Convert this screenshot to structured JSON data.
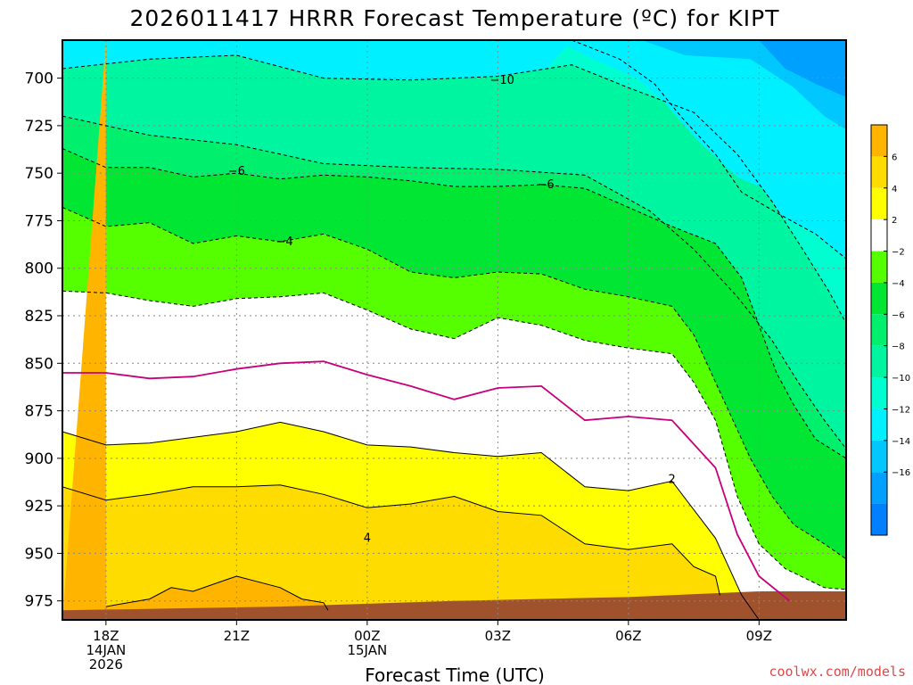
{
  "chart_data": {
    "type": "heatmap",
    "title": "2026011417 HRRR Forecast Temperature (ºC) for KIPT",
    "xlabel": "Forecast Time (UTC)",
    "ylabel": "",
    "x_range_hours": [
      -1,
      17
    ],
    "y_range_hpa": [
      680,
      985
    ],
    "x_ticks": [
      {
        "hour": 0,
        "lines": [
          "18Z",
          "14JAN",
          "2026"
        ]
      },
      {
        "hour": 3,
        "lines": [
          "21Z"
        ]
      },
      {
        "hour": 6,
        "lines": [
          "00Z",
          "15JAN"
        ]
      },
      {
        "hour": 9,
        "lines": [
          "03Z"
        ]
      },
      {
        "hour": 12,
        "lines": [
          "06Z"
        ]
      },
      {
        "hour": 15,
        "lines": [
          "09Z"
        ]
      }
    ],
    "y_ticks": [
      700,
      725,
      750,
      775,
      800,
      825,
      850,
      875,
      900,
      925,
      950,
      975
    ],
    "colorbar": {
      "bands": [
        {
          "from": 6,
          "to": 8,
          "color": "#ffb400"
        },
        {
          "from": 4,
          "to": 6,
          "color": "#ffdc00"
        },
        {
          "from": 2,
          "to": 4,
          "color": "#ffff00"
        },
        {
          "from": -2,
          "to": 2,
          "color": "#ffffff"
        },
        {
          "from": -4,
          "to": -2,
          "color": "#55ff00"
        },
        {
          "from": -6,
          "to": -4,
          "color": "#00e632"
        },
        {
          "from": -8,
          "to": -6,
          "color": "#00f06e"
        },
        {
          "from": -10,
          "to": -8,
          "color": "#00f5a0"
        },
        {
          "from": -12,
          "to": -10,
          "color": "#00ffd0"
        },
        {
          "from": -14,
          "to": -12,
          "color": "#00f0ff"
        },
        {
          "from": -16,
          "to": -14,
          "color": "#00c8ff"
        },
        {
          "from": -18,
          "to": -16,
          "color": "#00a0ff"
        },
        {
          "from": -20,
          "to": -18,
          "color": "#0080ff"
        }
      ],
      "tick_labels": [
        "6",
        "4",
        "2",
        "−2",
        "−4",
        "−6",
        "−8",
        "−10",
        "−12",
        "−14",
        "−16"
      ]
    },
    "fill_regions": [
      {
        "level": -18,
        "color": "#0080ff",
        "upper": [],
        "lower": []
      },
      {
        "level": -16,
        "color": "#00a0ff"
      },
      {
        "level": -14,
        "color": "#00c8ff"
      },
      {
        "level": -12,
        "color": "#00f0ff"
      },
      {
        "level": -10,
        "color": "#00ffd0"
      },
      {
        "level": -8,
        "color": "#00f5a0"
      },
      {
        "level": -6,
        "color": "#00f06e"
      },
      {
        "level": -4,
        "color": "#00e632"
      },
      {
        "level": -2,
        "color": "#55ff00"
      },
      {
        "level": 2,
        "color": "#ffffff"
      },
      {
        "level": 4,
        "color": "#ffff00"
      },
      {
        "level": 6,
        "color": "#ffdc00"
      },
      {
        "level": 8,
        "color": "#ffb400"
      }
    ],
    "isotherms": [
      {
        "value": -12,
        "style": "dashed",
        "points": [
          [
            10.7,
            680
          ],
          [
            11.8,
            690
          ],
          [
            12.6,
            703
          ],
          [
            13.2,
            720
          ],
          [
            14.0,
            740
          ],
          [
            14.6,
            760
          ],
          [
            15.5,
            772
          ],
          [
            16.3,
            782
          ],
          [
            17,
            795
          ]
        ]
      },
      {
        "value": -10,
        "style": "dashed",
        "points": [
          [
            -1,
            695
          ],
          [
            1,
            690
          ],
          [
            3,
            688
          ],
          [
            5,
            700
          ],
          [
            7,
            701
          ],
          [
            9,
            699
          ],
          [
            10.7,
            693
          ],
          [
            12,
            705
          ],
          [
            13.5,
            718
          ],
          [
            14.5,
            740
          ],
          [
            15.3,
            765
          ],
          [
            16,
            790
          ],
          [
            16.6,
            812
          ],
          [
            17,
            829
          ]
        ]
      },
      {
        "value": -8,
        "style": "dashed",
        "points": [
          [
            -1,
            720
          ],
          [
            1,
            730
          ],
          [
            3,
            735
          ],
          [
            5,
            745
          ],
          [
            7,
            747
          ],
          [
            9,
            748
          ],
          [
            11,
            751
          ],
          [
            12.5,
            770
          ],
          [
            13.5,
            790
          ],
          [
            14.5,
            815
          ],
          [
            15.3,
            838
          ],
          [
            15.9,
            860
          ],
          [
            16.5,
            880
          ],
          [
            17,
            895
          ]
        ]
      },
      {
        "value": -6,
        "style": "dashed",
        "points": [
          [
            -1,
            737
          ],
          [
            0,
            747
          ],
          [
            1,
            747
          ],
          [
            2,
            752
          ],
          [
            3,
            750
          ],
          [
            4,
            753
          ],
          [
            5,
            751
          ],
          [
            6,
            752
          ],
          [
            7,
            754
          ],
          [
            8,
            757
          ],
          [
            9,
            757
          ],
          [
            10,
            756
          ],
          [
            11,
            758
          ],
          [
            12,
            768
          ],
          [
            13,
            778
          ],
          [
            14,
            787
          ],
          [
            14.6,
            805
          ],
          [
            15,
            830
          ],
          [
            15.4,
            855
          ],
          [
            15.8,
            872
          ],
          [
            16.3,
            890
          ],
          [
            17,
            900
          ]
        ]
      },
      {
        "value": -4,
        "style": "dashed",
        "points": [
          [
            -1,
            768
          ],
          [
            0,
            778
          ],
          [
            1,
            776
          ],
          [
            2,
            787
          ],
          [
            3,
            783
          ],
          [
            4,
            786
          ],
          [
            5,
            782
          ],
          [
            6,
            790
          ],
          [
            7,
            802
          ],
          [
            8,
            805
          ],
          [
            9,
            802
          ],
          [
            10,
            803
          ],
          [
            11,
            811
          ],
          [
            12,
            815
          ],
          [
            13,
            820
          ],
          [
            13.5,
            835
          ],
          [
            14.2,
            870
          ],
          [
            14.8,
            900
          ],
          [
            15.3,
            920
          ],
          [
            15.8,
            935
          ],
          [
            16.5,
            945
          ],
          [
            17,
            953
          ]
        ]
      },
      {
        "value": -2,
        "style": "dashed",
        "points": [
          [
            -1,
            812
          ],
          [
            0,
            813
          ],
          [
            1,
            817
          ],
          [
            2,
            820
          ],
          [
            3,
            816
          ],
          [
            4,
            815
          ],
          [
            5,
            813
          ],
          [
            6,
            822
          ],
          [
            7,
            832
          ],
          [
            8,
            837
          ],
          [
            9,
            826
          ],
          [
            10,
            830
          ],
          [
            11,
            838
          ],
          [
            12,
            842
          ],
          [
            13,
            845
          ],
          [
            13.5,
            860
          ],
          [
            14.0,
            880
          ],
          [
            14.5,
            920
          ],
          [
            15.0,
            945
          ],
          [
            15.6,
            958
          ],
          [
            16.5,
            968
          ],
          [
            17,
            969
          ]
        ]
      },
      {
        "value": 0,
        "style": "solid",
        "color": "#c8007a",
        "points": [
          [
            -1,
            855
          ],
          [
            0,
            855
          ],
          [
            1,
            858
          ],
          [
            2,
            857
          ],
          [
            3,
            853
          ],
          [
            4,
            850
          ],
          [
            5,
            849
          ],
          [
            6,
            856
          ],
          [
            7,
            862
          ],
          [
            8,
            869
          ],
          [
            9,
            863
          ],
          [
            10,
            862
          ],
          [
            11,
            880
          ],
          [
            12,
            878
          ],
          [
            13,
            880
          ],
          [
            14,
            905
          ],
          [
            14.5,
            940
          ],
          [
            15,
            962
          ],
          [
            15.7,
            975
          ]
        ]
      },
      {
        "value": 2,
        "style": "solid",
        "points": [
          [
            -1,
            886
          ],
          [
            0,
            893
          ],
          [
            1,
            892
          ],
          [
            2,
            889
          ],
          [
            3,
            886
          ],
          [
            4,
            881
          ],
          [
            5,
            886
          ],
          [
            6,
            893
          ],
          [
            7,
            894
          ],
          [
            8,
            897
          ],
          [
            9,
            899
          ],
          [
            10,
            897
          ],
          [
            11,
            915
          ],
          [
            12,
            917
          ],
          [
            13,
            912
          ],
          [
            14,
            942
          ],
          [
            14.6,
            972
          ],
          [
            15,
            985
          ]
        ]
      },
      {
        "value": 4,
        "style": "solid",
        "points": [
          [
            -1,
            915
          ],
          [
            0,
            922
          ],
          [
            1,
            919
          ],
          [
            2,
            915
          ],
          [
            3,
            915
          ],
          [
            4,
            914
          ],
          [
            5,
            919
          ],
          [
            6,
            926
          ],
          [
            7,
            924
          ],
          [
            8,
            920
          ],
          [
            9,
            928
          ],
          [
            10,
            930
          ],
          [
            11,
            945
          ],
          [
            12,
            948
          ],
          [
            13,
            945
          ],
          [
            13.5,
            957
          ],
          [
            14,
            962
          ],
          [
            14.1,
            972
          ]
        ]
      },
      {
        "value": 6,
        "style": "solid",
        "points": [
          [
            0,
            978
          ],
          [
            1,
            974
          ],
          [
            1.5,
            968
          ],
          [
            2,
            970
          ],
          [
            3,
            962
          ],
          [
            4,
            968
          ],
          [
            4.5,
            974
          ],
          [
            5,
            976
          ],
          [
            5.1,
            980
          ]
        ]
      }
    ],
    "contour_labels": [
      {
        "text": "−10",
        "hour": 9.1,
        "hpa": 701
      },
      {
        "text": "−6",
        "hour": 3.0,
        "hpa": 749
      },
      {
        "text": "−6",
        "hour": 10.1,
        "hpa": 756
      },
      {
        "text": "−4",
        "hour": 4.1,
        "hpa": 786
      },
      {
        "text": "4",
        "hour": 6.0,
        "hpa": 942
      },
      {
        "text": "2",
        "hour": 13.0,
        "hpa": 911
      }
    ],
    "ground": {
      "color": "#a0522d",
      "surface": [
        [
          -1,
          980
        ],
        [
          4,
          978
        ],
        [
          8,
          975
        ],
        [
          12,
          973
        ],
        [
          15,
          970
        ],
        [
          17,
          970
        ]
      ]
    }
  },
  "credit": "coolwx.com/models"
}
